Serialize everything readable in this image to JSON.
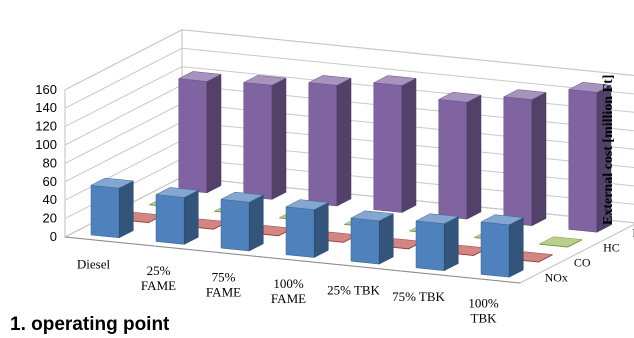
{
  "caption": "1. operating point",
  "chart_data": {
    "type": "bar3d",
    "categories": [
      [
        "Diesel"
      ],
      [
        "25%",
        "FAME"
      ],
      [
        "75%",
        "FAME"
      ],
      [
        "100%",
        "FAME"
      ],
      [
        "25% TBK"
      ],
      [
        "75% TBK"
      ],
      [
        "100%",
        "TBK"
      ]
    ],
    "series": [
      {
        "name": "NOx",
        "color": "#4f81bd",
        "values": [
          54,
          51,
          53,
          52,
          47,
          51,
          57
        ]
      },
      {
        "name": "CO",
        "color": "#c0504d",
        "values": [
          0.5,
          0.5,
          0.5,
          0.5,
          0.5,
          0.5,
          0.5
        ]
      },
      {
        "name": "HC",
        "color": "#9bbb59",
        "values": [
          0.5,
          0.5,
          0.5,
          0.5,
          0.5,
          0.5,
          0.5
        ]
      },
      {
        "name": "PM",
        "color": "#8064a2",
        "values": [
          121,
          124,
          131,
          138,
          127,
          137,
          152
        ]
      }
    ],
    "ylabel": "External cost [million Ft]",
    "ylim": [
      0,
      160
    ],
    "yticks": [
      0,
      20,
      40,
      60,
      80,
      100,
      120,
      140,
      160
    ],
    "grid": true
  }
}
